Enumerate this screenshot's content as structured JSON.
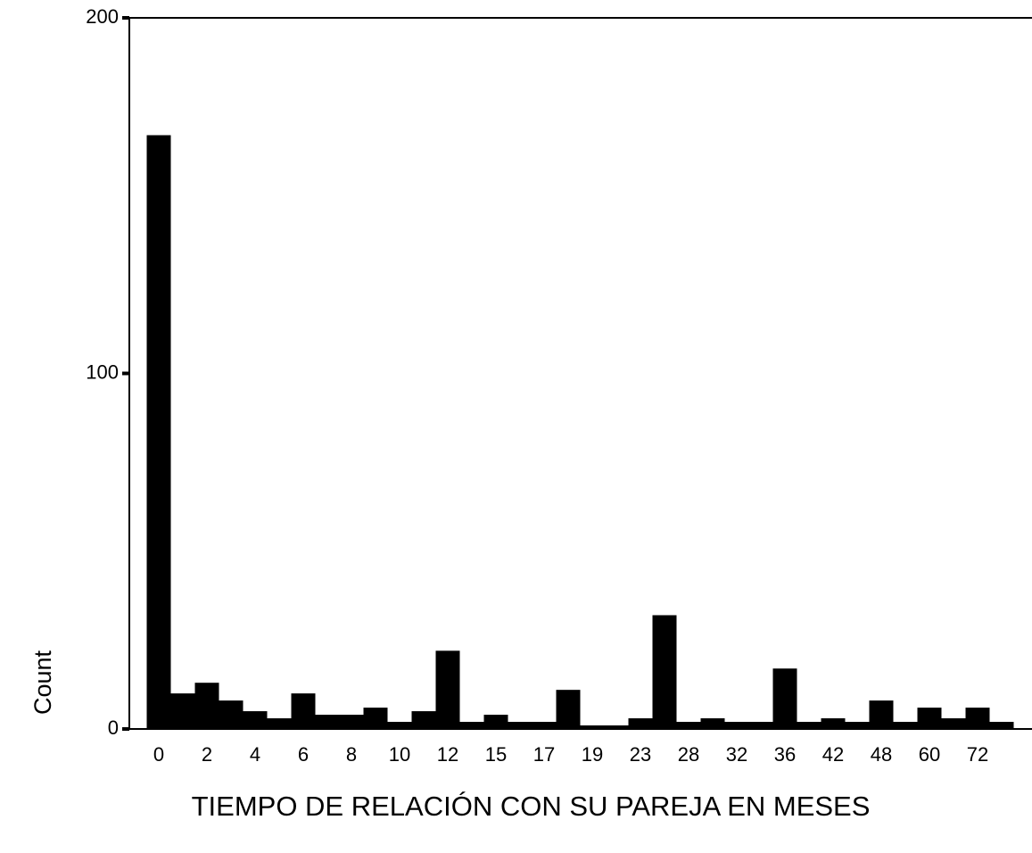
{
  "chart_data": {
    "type": "bar",
    "xlabel": "TIEMPO DE RELACIÓN CON SU PAREJA EN MESES",
    "ylabel": "Count",
    "categories": [
      "0",
      null,
      "2",
      null,
      "4",
      null,
      "6",
      null,
      "8",
      null,
      "10",
      null,
      "12",
      null,
      "15",
      null,
      "17",
      null,
      "19",
      null,
      "23",
      null,
      "28",
      null,
      "32",
      null,
      "36",
      null,
      "42",
      null,
      "48",
      null,
      "60",
      null,
      "72",
      null
    ],
    "values": [
      167,
      10,
      13,
      8,
      5,
      3,
      10,
      4,
      4,
      6,
      2,
      5,
      22,
      2,
      4,
      2,
      2,
      11,
      1,
      1,
      3,
      32,
      2,
      3,
      2,
      2,
      17,
      2,
      3,
      2,
      8,
      2,
      6,
      3,
      6,
      2
    ],
    "color": "#000000",
    "ylim": [
      0,
      200
    ],
    "yticks": [
      0,
      100,
      200
    ],
    "grid": false
  }
}
